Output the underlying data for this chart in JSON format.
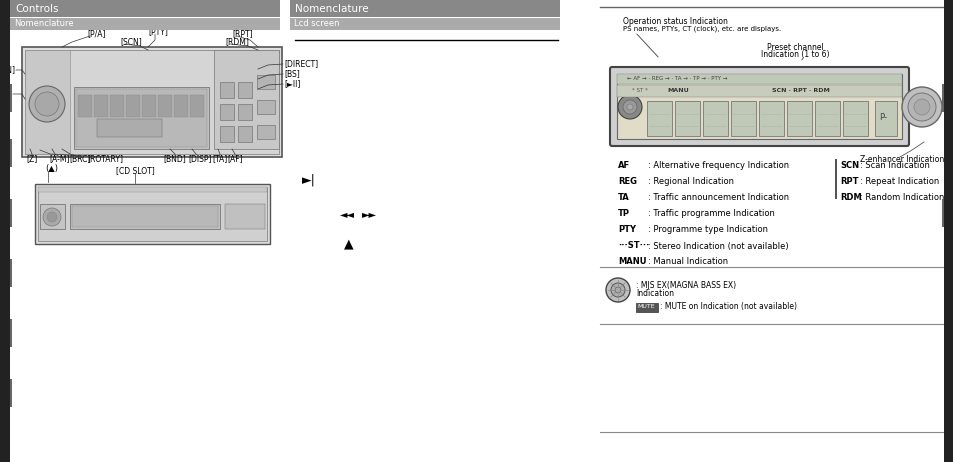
{
  "bg_color": "#ffffff",
  "header_color": "#888888",
  "dark_bar_color": "#222222",
  "sub_header_color": "#aaaaaa",
  "left_section_title": "Controls",
  "middle_section_title": "Nomenclature",
  "sub_title_left": "Nomenclature",
  "sub_title_right": "Lcd screen",
  "label_items_right": [
    [
      "AF",
      "Alternative frequency Indication"
    ],
    [
      "REG",
      "Regional Indication"
    ],
    [
      "TA",
      "Traffic announcement Indication"
    ],
    [
      "TP",
      "Traffic programme Indication"
    ],
    [
      "PTY",
      "Programme type Indication"
    ],
    [
      "···ST···",
      "Stereo Indication (not available)"
    ],
    [
      "MANU",
      "Manual Indication"
    ]
  ],
  "right_labels": [
    [
      "SCN",
      "Scan Indication"
    ],
    [
      "RPT",
      "Repeat Indication"
    ],
    [
      "RDM",
      "Random Indication"
    ]
  ],
  "bottom_items": [
    "MJS EX(MAGNA BASS EX)",
    "Indication",
    ": MUTE on Indication (not available)"
  ]
}
